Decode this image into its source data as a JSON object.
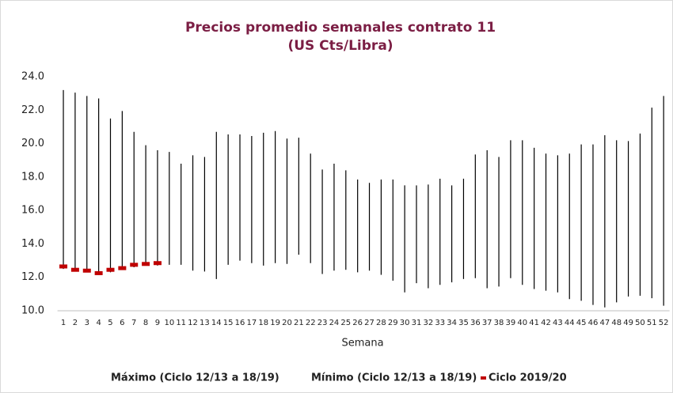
{
  "chart_data": {
    "type": "highlow",
    "title": "Precios promedio semanales contrato 11",
    "subtitle": "(US Cts/Libra)",
    "x_label": "Semana",
    "categories": [
      "1",
      "2",
      "3",
      "4",
      "5",
      "6",
      "7",
      "8",
      "9",
      "10",
      "11",
      "12",
      "13",
      "14",
      "15",
      "16",
      "17",
      "18",
      "19",
      "20",
      "21",
      "22",
      "23",
      "24",
      "25",
      "26",
      "27",
      "28",
      "29",
      "30",
      "31",
      "32",
      "33",
      "34",
      "35",
      "36",
      "37",
      "38",
      "39",
      "40",
      "41",
      "42",
      "43",
      "44",
      "45",
      "46",
      "47",
      "48",
      "49",
      "50",
      "51",
      "52"
    ],
    "series": [
      {
        "name": "Máximo (Ciclo 12/13 a 18/19)",
        "color": "#000000",
        "values": [
          23.2,
          23.05,
          22.85,
          22.7,
          21.5,
          21.95,
          20.7,
          19.9,
          19.6,
          19.5,
          18.8,
          19.3,
          19.2,
          20.7,
          20.55,
          20.55,
          20.45,
          20.65,
          20.75,
          20.3,
          20.35,
          19.4,
          18.45,
          18.8,
          18.4,
          17.85,
          17.65,
          17.85,
          17.85,
          17.5,
          17.5,
          17.55,
          17.9,
          17.5,
          17.9,
          19.35,
          19.6,
          19.2,
          20.2,
          20.2,
          19.75,
          19.4,
          19.3,
          19.4,
          19.95,
          19.95,
          20.5,
          20.2,
          20.15,
          20.6,
          22.15,
          22.85
        ]
      },
      {
        "name": "Mínimo (Ciclo 12/13 a 18/19)",
        "color": "#000000",
        "values": [
          12.5,
          12.4,
          12.3,
          12.2,
          12.3,
          12.5,
          12.6,
          12.7,
          12.7,
          12.75,
          12.75,
          12.4,
          12.35,
          11.9,
          12.75,
          13.0,
          12.85,
          12.7,
          12.85,
          12.8,
          13.35,
          12.85,
          12.2,
          12.4,
          12.45,
          12.3,
          12.4,
          12.15,
          11.8,
          11.1,
          11.65,
          11.35,
          11.55,
          11.7,
          11.9,
          11.95,
          11.35,
          11.45,
          11.95,
          11.55,
          11.3,
          11.2,
          11.1,
          10.7,
          10.6,
          10.35,
          10.2,
          10.5,
          10.85,
          10.9,
          10.75,
          10.3
        ]
      },
      {
        "name": "Ciclo 2019/20",
        "color": "#c00000",
        "marker": "dash",
        "values": [
          12.65,
          12.45,
          12.4,
          12.25,
          12.45,
          12.55,
          12.75,
          12.8,
          12.85,
          null,
          null,
          null,
          null,
          null,
          null,
          null,
          null,
          null,
          null,
          null,
          null,
          null,
          null,
          null,
          null,
          null,
          null,
          null,
          null,
          null,
          null,
          null,
          null,
          null,
          null,
          null,
          null,
          null,
          null,
          null,
          null,
          null,
          null,
          null,
          null,
          null,
          null,
          null,
          null,
          null,
          null,
          null
        ]
      }
    ],
    "ylim": [
      10,
      24
    ],
    "yticks": [
      {
        "value": 10,
        "label": "10.0"
      },
      {
        "value": 12,
        "label": "12.0"
      },
      {
        "value": 14,
        "label": "14.0"
      },
      {
        "value": 16,
        "label": "16.0"
      },
      {
        "value": 18,
        "label": "18.0"
      },
      {
        "value": 20,
        "label": "20.0"
      },
      {
        "value": 22,
        "label": "22.0"
      },
      {
        "value": 24,
        "label": "24.0"
      }
    ],
    "title_color": "#7b1e44"
  }
}
